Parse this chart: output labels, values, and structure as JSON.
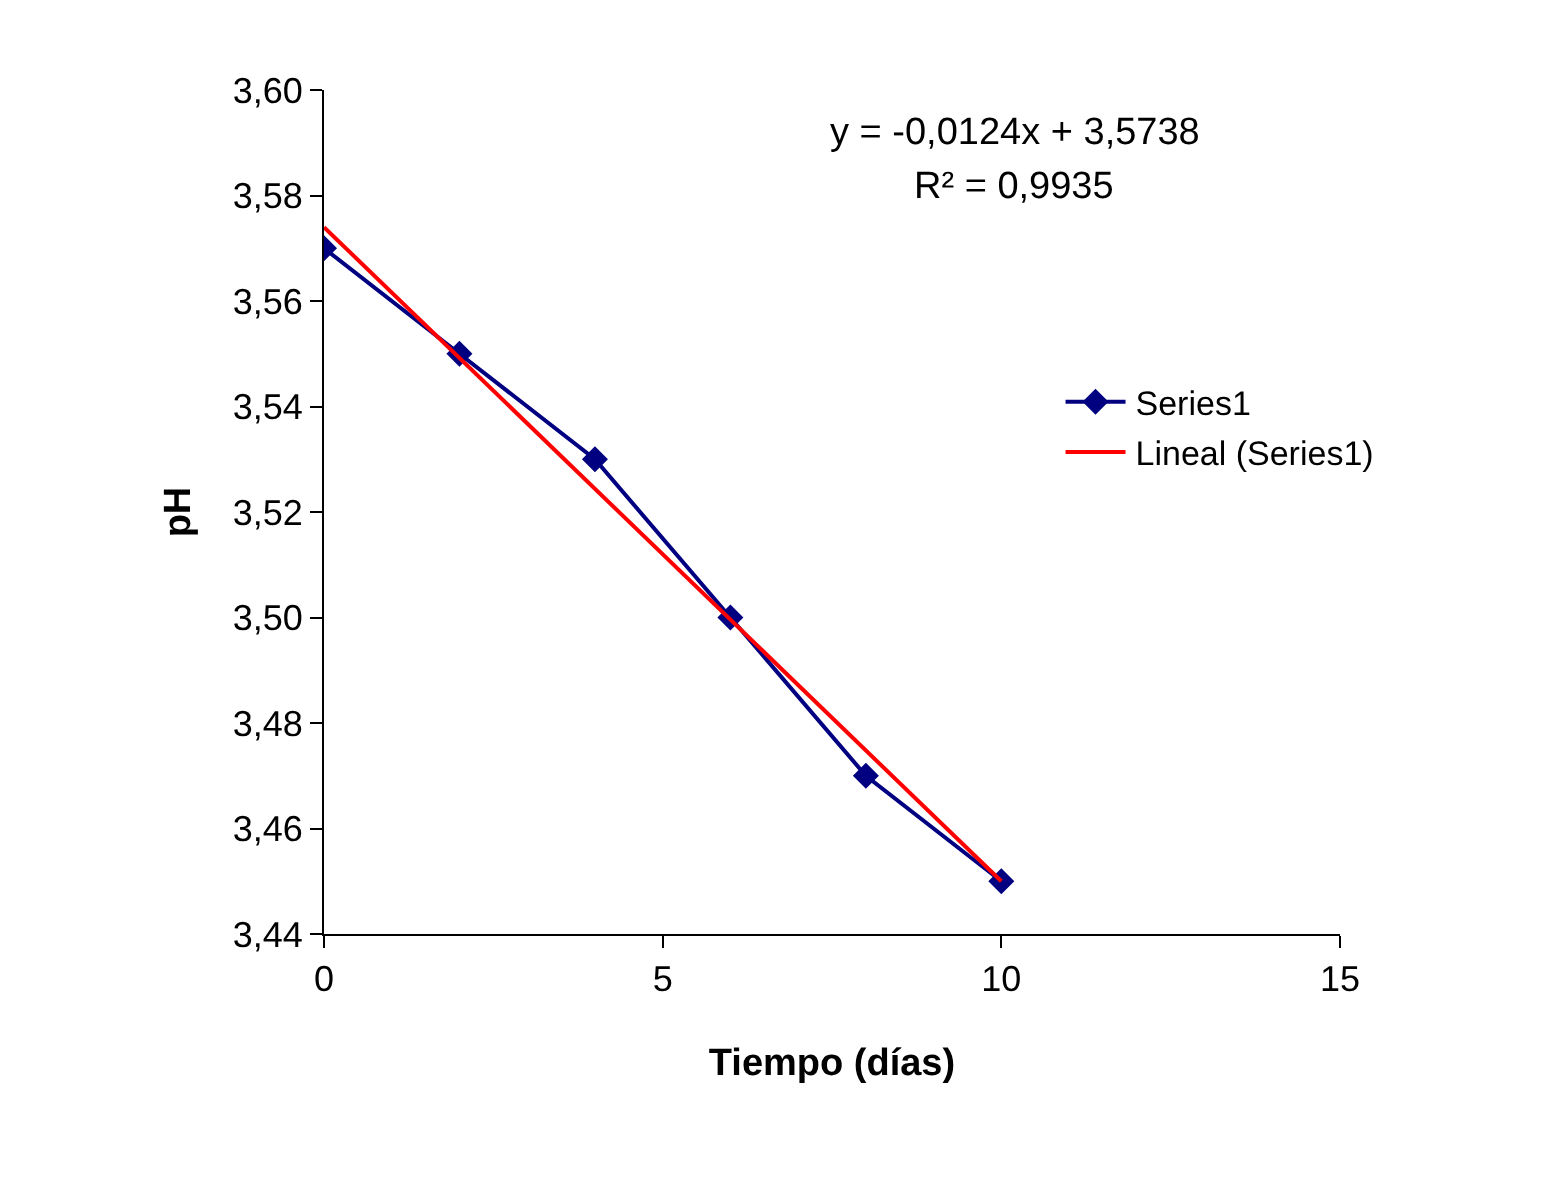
{
  "chart_data": {
    "type": "line",
    "xlabel": "Tiempo (días)",
    "ylabel": "pH",
    "x": [
      0,
      2,
      4,
      6,
      8,
      10
    ],
    "series": [
      {
        "name": "Series1",
        "color": "#000080",
        "values": [
          3.57,
          3.55,
          3.53,
          3.5,
          3.47,
          3.45
        ],
        "marker": "diamond"
      },
      {
        "name": "Lineal (Series1)",
        "type": "line",
        "color": "#ff0000",
        "x": [
          0,
          10
        ],
        "values": [
          3.574,
          3.45
        ],
        "marker": "none"
      }
    ],
    "xlim": [
      0,
      15
    ],
    "xticks": [
      0,
      5,
      10,
      15
    ],
    "ylim": [
      3.44,
      3.6
    ],
    "yticks": [
      {
        "value": 3.44,
        "label": "3,44"
      },
      {
        "value": 3.46,
        "label": "3,46"
      },
      {
        "value": 3.48,
        "label": "3,48"
      },
      {
        "value": 3.5,
        "label": "3,50"
      },
      {
        "value": 3.52,
        "label": "3,52"
      },
      {
        "value": 3.54,
        "label": "3,54"
      },
      {
        "value": 3.56,
        "label": "3,56"
      },
      {
        "value": 3.58,
        "label": "3,58"
      },
      {
        "value": 3.6,
        "label": "3,60"
      }
    ],
    "annotations": [
      "y = -0,0124x + 3,5738",
      "R² = 0,9935"
    ],
    "grid": false,
    "legend": "right",
    "line_style": "solid"
  }
}
